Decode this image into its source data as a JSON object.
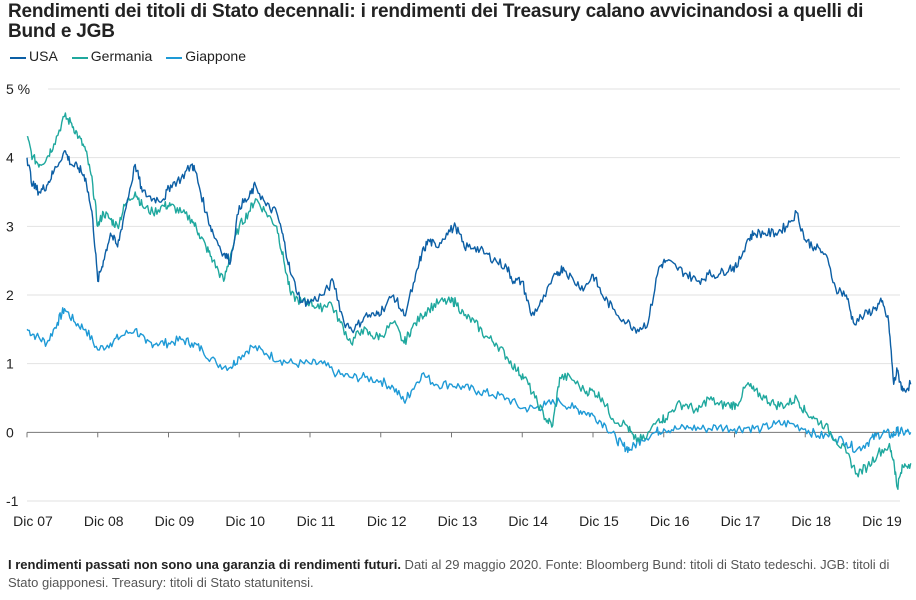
{
  "chart_data": {
    "type": "line",
    "title": "Rendimenti dei titoli di Stato decennali: i rendimenti dei Treasury calano avvicinandosi a quelli di Bund e JGB",
    "xlabel": "",
    "ylabel": "",
    "y_unit_label": "5 %",
    "ylim": [
      -1,
      5
    ],
    "y_ticks": [
      {
        "value": 5,
        "label": "5 %"
      },
      {
        "value": 4,
        "label": "4"
      },
      {
        "value": 3,
        "label": "3"
      },
      {
        "value": 2,
        "label": "2"
      },
      {
        "value": 1,
        "label": "1"
      },
      {
        "value": 0,
        "label": "0"
      },
      {
        "value": -1,
        "label": "-1"
      }
    ],
    "x_range": [
      2007.92,
      2020.41
    ],
    "x_ticks": [
      {
        "value": 2007.92,
        "label": "Dic 07"
      },
      {
        "value": 2008.92,
        "label": "Dic 08"
      },
      {
        "value": 2009.92,
        "label": "Dic 09"
      },
      {
        "value": 2010.92,
        "label": "Dic 10"
      },
      {
        "value": 2011.92,
        "label": "Dic 11"
      },
      {
        "value": 2012.92,
        "label": "Dic 12"
      },
      {
        "value": 2013.92,
        "label": "Dic 13"
      },
      {
        "value": 2014.92,
        "label": "Dic 14"
      },
      {
        "value": 2015.92,
        "label": "Dic 15"
      },
      {
        "value": 2016.92,
        "label": "Dic 16"
      },
      {
        "value": 2017.92,
        "label": "Dic 17"
      },
      {
        "value": 2018.92,
        "label": "Dic 18"
      },
      {
        "value": 2019.92,
        "label": "Dic 19"
      }
    ],
    "grid": true,
    "legend_position": "top-left",
    "series": [
      {
        "name": "USA",
        "color": "#0c5fa5",
        "x": [
          2007.92,
          2008.0,
          2008.1,
          2008.2,
          2008.3,
          2008.45,
          2008.55,
          2008.65,
          2008.75,
          2008.85,
          2008.92,
          2009.0,
          2009.1,
          2009.2,
          2009.3,
          2009.45,
          2009.55,
          2009.7,
          2009.85,
          2009.95,
          2010.1,
          2010.25,
          2010.3,
          2010.45,
          2010.55,
          2010.7,
          2010.8,
          2010.92,
          2011.05,
          2011.15,
          2011.3,
          2011.45,
          2011.55,
          2011.65,
          2011.8,
          2011.92,
          2012.1,
          2012.25,
          2012.4,
          2012.55,
          2012.7,
          2012.85,
          2012.95,
          2013.1,
          2013.25,
          2013.4,
          2013.5,
          2013.6,
          2013.7,
          2013.85,
          2013.98,
          2014.1,
          2014.25,
          2014.4,
          2014.55,
          2014.7,
          2014.8,
          2014.92,
          2015.05,
          2015.2,
          2015.4,
          2015.5,
          2015.65,
          2015.8,
          2015.92,
          2016.05,
          2016.2,
          2016.4,
          2016.55,
          2016.7,
          2016.85,
          2016.95,
          2017.1,
          2017.25,
          2017.4,
          2017.55,
          2017.7,
          2017.85,
          2017.95,
          2018.1,
          2018.2,
          2018.35,
          2018.5,
          2018.65,
          2018.8,
          2018.92,
          2019.05,
          2019.2,
          2019.35,
          2019.5,
          2019.6,
          2019.75,
          2019.9,
          2020.0,
          2020.1,
          2020.17,
          2020.22,
          2020.3,
          2020.41
        ],
        "y": [
          4.0,
          3.6,
          3.5,
          3.6,
          3.8,
          4.1,
          3.9,
          3.85,
          3.7,
          3.1,
          2.2,
          2.5,
          2.9,
          2.7,
          3.2,
          3.9,
          3.5,
          3.4,
          3.4,
          3.6,
          3.7,
          3.9,
          3.8,
          3.2,
          2.9,
          2.6,
          2.5,
          3.3,
          3.4,
          3.6,
          3.3,
          3.2,
          2.8,
          2.3,
          1.9,
          1.9,
          2.0,
          2.2,
          1.6,
          1.5,
          1.7,
          1.7,
          1.8,
          2.0,
          1.7,
          2.2,
          2.6,
          2.8,
          2.7,
          2.9,
          3.0,
          2.7,
          2.7,
          2.6,
          2.5,
          2.4,
          2.2,
          2.2,
          1.7,
          1.9,
          2.3,
          2.4,
          2.2,
          2.1,
          2.3,
          2.0,
          1.8,
          1.6,
          1.5,
          1.6,
          2.4,
          2.5,
          2.4,
          2.3,
          2.2,
          2.3,
          2.3,
          2.4,
          2.4,
          2.8,
          2.9,
          2.9,
          2.9,
          3.0,
          3.2,
          2.8,
          2.7,
          2.6,
          2.1,
          2.0,
          1.6,
          1.7,
          1.8,
          1.9,
          1.6,
          0.7,
          0.9,
          0.6,
          0.7
        ]
      },
      {
        "name": "Germania",
        "color": "#1fa89e",
        "x": [
          2007.92,
          2008.0,
          2008.1,
          2008.2,
          2008.3,
          2008.45,
          2008.55,
          2008.65,
          2008.75,
          2008.85,
          2008.92,
          2009.0,
          2009.1,
          2009.2,
          2009.3,
          2009.45,
          2009.55,
          2009.7,
          2009.85,
          2009.95,
          2010.1,
          2010.25,
          2010.35,
          2010.45,
          2010.55,
          2010.7,
          2010.8,
          2010.92,
          2011.05,
          2011.15,
          2011.3,
          2011.45,
          2011.55,
          2011.65,
          2011.8,
          2011.92,
          2012.05,
          2012.2,
          2012.35,
          2012.5,
          2012.65,
          2012.8,
          2012.92,
          2013.1,
          2013.25,
          2013.35,
          2013.5,
          2013.6,
          2013.75,
          2013.9,
          2013.98,
          2014.1,
          2014.25,
          2014.4,
          2014.55,
          2014.7,
          2014.85,
          2014.95,
          2015.1,
          2015.25,
          2015.35,
          2015.45,
          2015.6,
          2015.8,
          2015.92,
          2016.05,
          2016.2,
          2016.4,
          2016.5,
          2016.65,
          2016.85,
          2016.95,
          2017.1,
          2017.25,
          2017.4,
          2017.55,
          2017.7,
          2017.85,
          2017.95,
          2018.1,
          2018.2,
          2018.35,
          2018.5,
          2018.65,
          2018.8,
          2018.92,
          2019.05,
          2019.2,
          2019.35,
          2019.5,
          2019.65,
          2019.8,
          2019.95,
          2020.1,
          2020.17,
          2020.22,
          2020.3,
          2020.41
        ],
        "y": [
          4.3,
          4.0,
          3.9,
          4.0,
          4.2,
          4.6,
          4.5,
          4.3,
          4.1,
          3.6,
          3.0,
          3.2,
          3.1,
          3.0,
          3.3,
          3.5,
          3.3,
          3.2,
          3.3,
          3.3,
          3.2,
          3.1,
          2.9,
          2.7,
          2.5,
          2.2,
          2.6,
          3.0,
          3.2,
          3.4,
          3.2,
          3.0,
          2.5,
          2.0,
          1.9,
          1.9,
          1.8,
          1.9,
          1.6,
          1.3,
          1.5,
          1.4,
          1.4,
          1.6,
          1.3,
          1.5,
          1.7,
          1.8,
          1.9,
          1.9,
          1.9,
          1.7,
          1.6,
          1.4,
          1.3,
          1.1,
          0.9,
          0.8,
          0.5,
          0.2,
          0.1,
          0.8,
          0.8,
          0.6,
          0.6,
          0.5,
          0.2,
          0.1,
          -0.1,
          -0.1,
          0.2,
          0.2,
          0.4,
          0.4,
          0.3,
          0.5,
          0.4,
          0.4,
          0.4,
          0.7,
          0.6,
          0.5,
          0.4,
          0.4,
          0.5,
          0.3,
          0.2,
          0.1,
          -0.1,
          -0.3,
          -0.6,
          -0.5,
          -0.3,
          -0.2,
          -0.4,
          -0.8,
          -0.5,
          -0.45
        ]
      },
      {
        "name": "Giappone",
        "color": "#1e9ad6",
        "x": [
          2007.92,
          2008.05,
          2008.2,
          2008.35,
          2008.45,
          2008.6,
          2008.75,
          2008.92,
          2009.1,
          2009.25,
          2009.45,
          2009.6,
          2009.75,
          2009.92,
          2010.1,
          2010.25,
          2010.4,
          2010.6,
          2010.8,
          2010.92,
          2011.1,
          2011.3,
          2011.5,
          2011.7,
          2011.92,
          2012.1,
          2012.3,
          2012.5,
          2012.7,
          2012.92,
          2013.1,
          2013.25,
          2013.35,
          2013.5,
          2013.7,
          2013.92,
          2014.1,
          2014.3,
          2014.5,
          2014.7,
          2014.92,
          2015.1,
          2015.25,
          2015.45,
          2015.65,
          2015.8,
          2015.92,
          2016.1,
          2016.25,
          2016.35,
          2016.45,
          2016.6,
          2016.8,
          2016.92,
          2017.1,
          2017.3,
          2017.5,
          2017.7,
          2017.92,
          2018.1,
          2018.3,
          2018.5,
          2018.7,
          2018.92,
          2019.1,
          2019.3,
          2019.5,
          2019.65,
          2019.8,
          2019.92,
          2020.05,
          2020.15,
          2020.22,
          2020.3,
          2020.41
        ],
        "y": [
          1.5,
          1.4,
          1.3,
          1.6,
          1.8,
          1.6,
          1.5,
          1.2,
          1.3,
          1.4,
          1.5,
          1.3,
          1.3,
          1.3,
          1.35,
          1.3,
          1.2,
          1.0,
          0.95,
          1.1,
          1.25,
          1.15,
          1.05,
          1.0,
          1.0,
          1.0,
          0.85,
          0.8,
          0.8,
          0.75,
          0.65,
          0.45,
          0.6,
          0.85,
          0.7,
          0.7,
          0.65,
          0.6,
          0.55,
          0.5,
          0.35,
          0.35,
          0.4,
          0.45,
          0.35,
          0.3,
          0.25,
          0.1,
          -0.1,
          -0.2,
          -0.25,
          -0.1,
          0.0,
          0.05,
          0.05,
          0.07,
          0.05,
          0.08,
          0.05,
          0.07,
          0.05,
          0.12,
          0.13,
          0.05,
          -0.05,
          -0.05,
          -0.15,
          -0.25,
          -0.15,
          -0.05,
          0.0,
          -0.05,
          0.02,
          0.0,
          0.0
        ]
      }
    ]
  },
  "legend": [
    {
      "name": "USA",
      "color": "#0c5fa5"
    },
    {
      "name": "Germania",
      "color": "#1fa89e"
    },
    {
      "name": "Giappone",
      "color": "#1e9ad6"
    }
  ],
  "footnote": {
    "bold": "I rendimenti passati non sono una garanzia di rendimenti futuri.",
    "text": " Dati al 29 maggio 2020. Fonte: Bloomberg Bund: titoli di Stato tedeschi. JGB: titoli di Stato giapponesi. Treasury: titoli di Stato statunitensi."
  }
}
